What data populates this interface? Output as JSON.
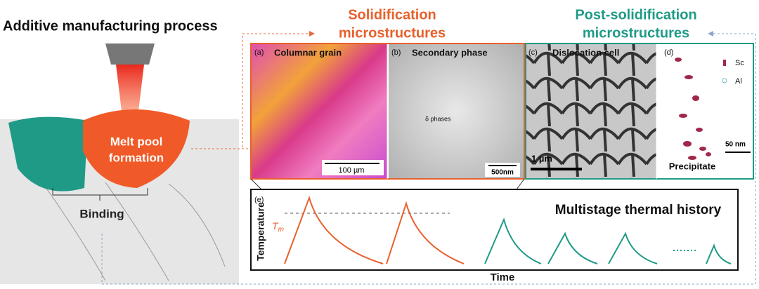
{
  "header": {
    "title": "Additive manufacturing process"
  },
  "sections": {
    "solidification": [
      "Solidification",
      "microstructures"
    ],
    "post_solidification": [
      "Post-solidification",
      "microstructures"
    ]
  },
  "melt_pool": {
    "label": [
      "Melt pool",
      "formation"
    ],
    "binding": "Binding"
  },
  "panels": [
    {
      "tag": "(a)",
      "label": "Columnar grain",
      "scale": "100 µm"
    },
    {
      "tag": "(b)",
      "label": "Secondary phase",
      "note": "δ phases",
      "scale": "500nm"
    },
    {
      "tag": "(c)",
      "label": "Dislocation cell",
      "scale": "1 µm"
    },
    {
      "tag": "(d)",
      "legend": [
        "Sc",
        "Al"
      ],
      "scale": "50 nm",
      "label": "Precipitate"
    }
  ],
  "thermal": {
    "tag": "(e)",
    "title": "Multistage thermal history",
    "melt_symbol": "T",
    "melt_subscript": "m",
    "y_label": "Temperature",
    "x_label": "Time"
  }
}
